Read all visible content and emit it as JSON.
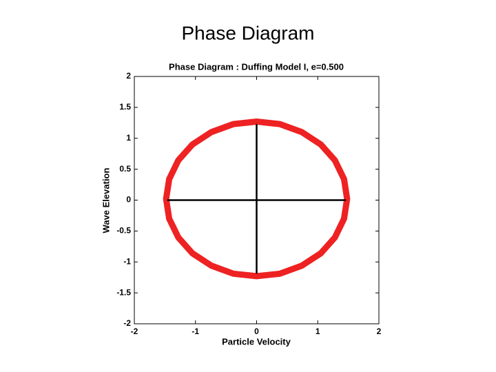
{
  "slide_title": "Phase Diagram",
  "chart_data": {
    "type": "line",
    "title": "Phase Diagram : Duffing Model I, e=0.500",
    "xlabel": "Particle Velocity",
    "ylabel": "Wave Elevation",
    "xlim": [
      -2,
      2
    ],
    "ylim": [
      -2,
      2
    ],
    "xticks": [
      -2,
      -1,
      0,
      1,
      2
    ],
    "yticks": [
      -2,
      -1.5,
      -1,
      -0.5,
      0,
      0.5,
      1,
      1.5,
      2
    ],
    "series": [
      {
        "color": "#ee2222",
        "x": [
          1.48,
          1.43,
          1.28,
          1.05,
          0.74,
          0.38,
          0,
          -0.38,
          -0.74,
          -1.05,
          -1.28,
          -1.43,
          -1.48,
          -1.43,
          -1.28,
          -1.05,
          -0.74,
          -0.38,
          0,
          0.38,
          0.74,
          1.05,
          1.28,
          1.43,
          1.48
        ],
        "values": [
          0.02,
          0.34,
          0.645,
          0.9,
          1.1,
          1.23,
          1.27,
          1.23,
          1.1,
          0.9,
          0.645,
          0.34,
          0.02,
          -0.3,
          -0.605,
          -0.86,
          -1.06,
          -1.19,
          -1.23,
          -1.19,
          -1.06,
          -0.86,
          -0.605,
          -0.3,
          0.02
        ]
      },
      {
        "color": "#000000",
        "x": [
          -1.45,
          1.45
        ],
        "values": [
          0,
          0
        ]
      },
      {
        "color": "#000000",
        "x": [
          0,
          0
        ],
        "values": [
          -1.18,
          1.22
        ]
      }
    ]
  }
}
